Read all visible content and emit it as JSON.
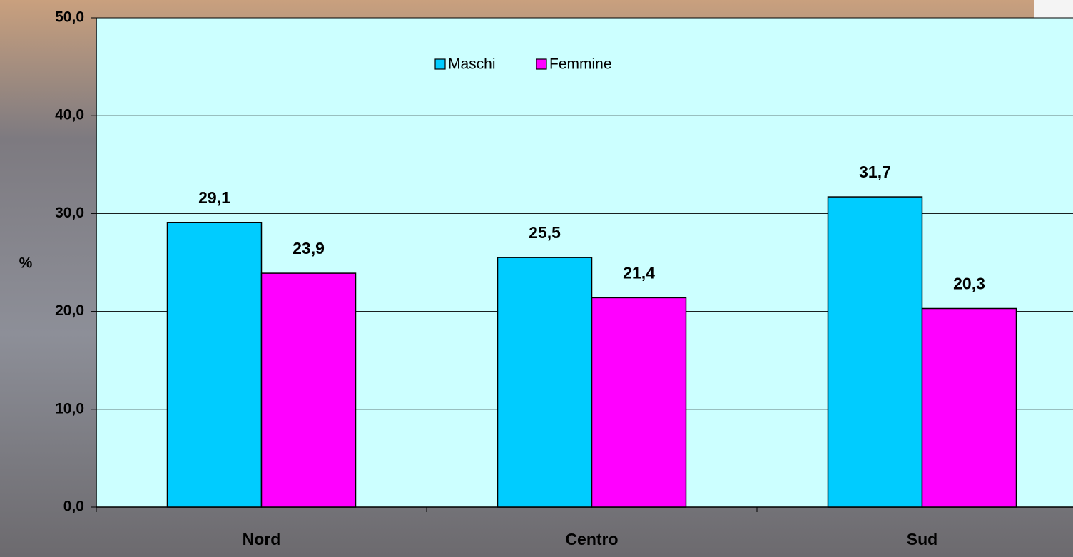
{
  "chart_data": {
    "type": "bar",
    "y_label": "%",
    "categories": [
      "Nord",
      "Centro",
      "Sud"
    ],
    "series": [
      {
        "name": "Maschi",
        "color": "#00ccff",
        "values": [
          29.1,
          25.5,
          31.7
        ],
        "value_labels": [
          "29,1",
          "25,5",
          "31,7"
        ]
      },
      {
        "name": "Femmine",
        "color": "#ff00ff",
        "values": [
          23.9,
          21.4,
          20.3
        ],
        "value_labels": [
          "23,9",
          "21,4",
          "20,3"
        ]
      }
    ],
    "ylim": [
      0,
      50
    ],
    "yticks": [
      {
        "value": 0,
        "label": "0,0"
      },
      {
        "value": 10,
        "label": "10,0"
      },
      {
        "value": 20,
        "label": "20,0"
      },
      {
        "value": 30,
        "label": "30,0"
      },
      {
        "value": 40,
        "label": "40,0"
      },
      {
        "value": 50,
        "label": "50,0"
      }
    ],
    "grid": true
  }
}
